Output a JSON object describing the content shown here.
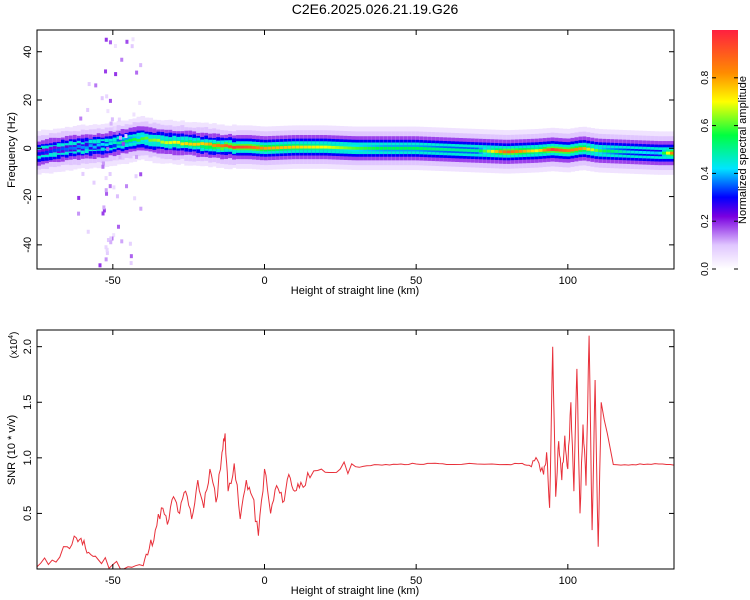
{
  "title": "C2E6.2025.026.21.19.G26",
  "chart_data": [
    {
      "type": "heatmap",
      "xlabel": "Height of straight line (km)",
      "ylabel": "Frequency (Hz)",
      "xlim": [
        -75,
        135
      ],
      "ylim": [
        -50,
        49
      ],
      "xticks": [
        -50,
        0,
        50,
        100
      ],
      "yticks": [
        -40,
        -20,
        0,
        20,
        40
      ],
      "colorbar": {
        "label": "Normalized spectral amplitude",
        "range": [
          0,
          1
        ],
        "ticks": [
          0.0,
          0.2,
          0.4,
          0.6,
          0.8
        ],
        "tick_labels": [
          "0.0",
          "0.2",
          "0.4",
          "0.6",
          "0.8"
        ]
      },
      "ridge": {
        "heights": [
          -75,
          -65,
          -55,
          -50,
          -45,
          -40,
          -35,
          -30,
          -25,
          -20,
          -15,
          -10,
          -5,
          0,
          10,
          20,
          30,
          40,
          50,
          60,
          70,
          80,
          90,
          95,
          100,
          105,
          110,
          120,
          130,
          135
        ],
        "frequency": [
          -2,
          0,
          1,
          2,
          3,
          4,
          3,
          2.5,
          2,
          1.5,
          1,
          0.5,
          0.5,
          0,
          0.5,
          0.5,
          0,
          0,
          0,
          -0.5,
          -1,
          -1.5,
          -1,
          -0.5,
          -1,
          0,
          -1,
          -1.5,
          -2,
          -2
        ],
        "intensity": [
          0.3,
          0.35,
          0.4,
          0.45,
          0.55,
          0.6,
          0.65,
          0.7,
          0.75,
          0.75,
          0.85,
          0.95,
          0.9,
          0.8,
          0.75,
          0.7,
          0.6,
          0.55,
          0.55,
          0.5,
          0.5,
          0.9,
          0.7,
          0.95,
          0.85,
          0.8,
          0.6,
          0.45,
          0.4,
          0.9
        ]
      }
    },
    {
      "type": "line",
      "xlabel": "Height of straight line (km)",
      "ylabel": "SNR (10 * v/v)",
      "y_multiplier": "(x10",
      "y_multiplier_exp": "4",
      "y_multiplier_close": ")",
      "xlim": [
        -75,
        135
      ],
      "ylim": [
        0,
        21500
      ],
      "xticks": [
        -50,
        0,
        50,
        100
      ],
      "yticks": [
        5000,
        10000,
        15000,
        20000
      ],
      "ytick_labels": [
        "0.5",
        "1.0",
        "1.5",
        "2.0"
      ],
      "color": "#e8303a",
      "series": [
        {
          "x": [
            -75,
            -70,
            -65,
            -62,
            -60,
            -58,
            -55,
            -50,
            -45,
            -40,
            -38,
            -36,
            -34,
            -32,
            -30,
            -28,
            -26,
            -24,
            -22,
            -20,
            -18,
            -16,
            -14,
            -13,
            -12,
            -10,
            -8,
            -6,
            -4,
            -2,
            0,
            2,
            4,
            6,
            8,
            10,
            12,
            15,
            20,
            25,
            30,
            35,
            40,
            45,
            50,
            55,
            60,
            70,
            80,
            85,
            88,
            90,
            92,
            93,
            94,
            95,
            96,
            97,
            98,
            99,
            100,
            101,
            102,
            103,
            104,
            105,
            106,
            107,
            108,
            109,
            110,
            111,
            115,
            120,
            125,
            130,
            135
          ],
          "y": [
            200,
            800,
            2000,
            2800,
            2200,
            1500,
            900,
            400,
            200,
            300,
            1800,
            3500,
            5500,
            4000,
            6500,
            5000,
            7000,
            4500,
            8000,
            5500,
            9000,
            6000,
            10500,
            12200,
            7000,
            9500,
            4500,
            8000,
            6500,
            3000,
            9000,
            5000,
            7500,
            6000,
            8500,
            7000,
            7800,
            8200,
            8700,
            9000,
            9200,
            9300,
            9400,
            9450,
            9450,
            9500,
            9400,
            9450,
            9400,
            9500,
            9200,
            9800,
            8500,
            10500,
            5500,
            20000,
            6500,
            11500,
            8000,
            12000,
            9000,
            15000,
            7000,
            18000,
            5000,
            13000,
            7500,
            21000,
            3500,
            17000,
            2000,
            15000,
            9400,
            9350,
            9400,
            9450,
            9350
          ]
        }
      ]
    }
  ]
}
